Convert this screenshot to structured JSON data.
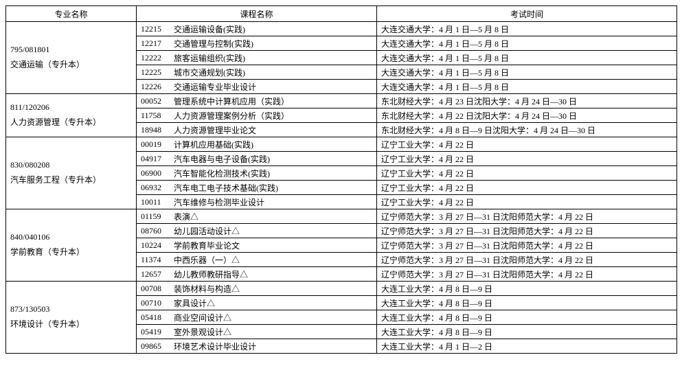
{
  "headers": {
    "major": "专业名称",
    "course": "课程名称",
    "time": "考试时间"
  },
  "groups": [
    {
      "major_code": "795/081801",
      "major_name": "交通运输（专升本）",
      "rows": [
        {
          "code": "12215",
          "course": "交通运输设备(实践)",
          "time": "大连交通大学：4 月 1 日—5 月 8 日"
        },
        {
          "code": "12217",
          "course": "交通管理与控制(实践)",
          "time": "大连交通大学：4 月 1 日—5 月 8 日"
        },
        {
          "code": "12222",
          "course": "旅客运输组织(实践)",
          "time": "大连交通大学：4 月 1 日—5 月 8 日"
        },
        {
          "code": "12225",
          "course": "城市交通规划(实践)",
          "time": "大连交通大学：4 月 1 日—5 月 8 日"
        },
        {
          "code": "12226",
          "course": "交通运输专业毕业设计",
          "time": "大连交通大学：4 月 1 日—5 月 8 日"
        }
      ]
    },
    {
      "major_code": "811/120206",
      "major_name": "人力资源管理（专升本）",
      "rows": [
        {
          "code": "00052",
          "course": "管理系统中计算机应用（实践）",
          "time": "东北财经大学：4 月 23 日沈阳大学：4 月 24 日—30 日"
        },
        {
          "code": "11758",
          "course": "人力资源管理案例分析（实践）",
          "time": "东北财经大学：4 月 22 日沈阳大学：4 月 24 日—30 日"
        },
        {
          "code": "18948",
          "course": "人力资源管理毕业论文",
          "time": "东北财经大学：4 月 8 日—9 日沈阳大学：4 月 24 日—30 日"
        }
      ]
    },
    {
      "major_code": "830/080208",
      "major_name": "汽车服务工程（专升本）",
      "rows": [
        {
          "code": "00019",
          "course": "计算机应用基础(实践)",
          "time": "辽宁工业大学：4 月 22 日"
        },
        {
          "code": "04917",
          "course": "汽车电器与电子设备(实践)",
          "time": "辽宁工业大学：4 月 22 日"
        },
        {
          "code": "06900",
          "course": "汽车智能化检测技术(实践)",
          "time": "辽宁工业大学：4 月 22 日"
        },
        {
          "code": "06932",
          "course": "汽车电工电子技术基础(实践)",
          "time": "辽宁工业大学：4 月 22 日"
        },
        {
          "code": "10011",
          "course": "汽车维修与检测毕业设计",
          "time": "辽宁工业大学：4 月 22 日"
        }
      ]
    },
    {
      "major_code": "840/040106",
      "major_name": "学前教育（专升本）",
      "rows": [
        {
          "code": "01159",
          "course": "表演△",
          "time": "辽宁师范大学：3 月 27 日—31 日沈阳师范大学：4 月 22 日"
        },
        {
          "code": "08760",
          "course": "幼儿园活动设计△",
          "time": "辽宁师范大学：3 月 27 日—31 日沈阳师范大学：4 月 22 日"
        },
        {
          "code": "10224",
          "course": "学前教育毕业论文",
          "time": "辽宁师范大学：3 月 27 日—31 日沈阳师范大学：4 月 22 日"
        },
        {
          "code": "11374",
          "course": "中西乐器（一）△",
          "time": "辽宁师范大学：3 月 27 日—31 日沈阳师范大学：4 月 22 日"
        },
        {
          "code": "12657",
          "course": "幼儿教师教研指导△",
          "time": "辽宁师范大学：3 月 27 日—31 日沈阳师范大学：4 月 22 日"
        }
      ]
    },
    {
      "major_code": "873/130503",
      "major_name": "环境设计（专升本）",
      "rows": [
        {
          "code": "00708",
          "course": "装饰材料与构造△",
          "time": "大连工业大学：4 月 8 日—9 日"
        },
        {
          "code": "00710",
          "course": "家具设计△",
          "time": "大连工业大学：4 月 8 日—9 日"
        },
        {
          "code": "05418",
          "course": "商业空间设计△",
          "time": "大连工业大学：4 月 8 日—9 日"
        },
        {
          "code": "05419",
          "course": "室外景观设计△",
          "time": "大连工业大学：4 月 8 日—9 日"
        },
        {
          "code": "09865",
          "course": "环境艺术设计毕业设计",
          "time": "大连工业大学：4 月 1 日—2 日"
        }
      ]
    }
  ]
}
